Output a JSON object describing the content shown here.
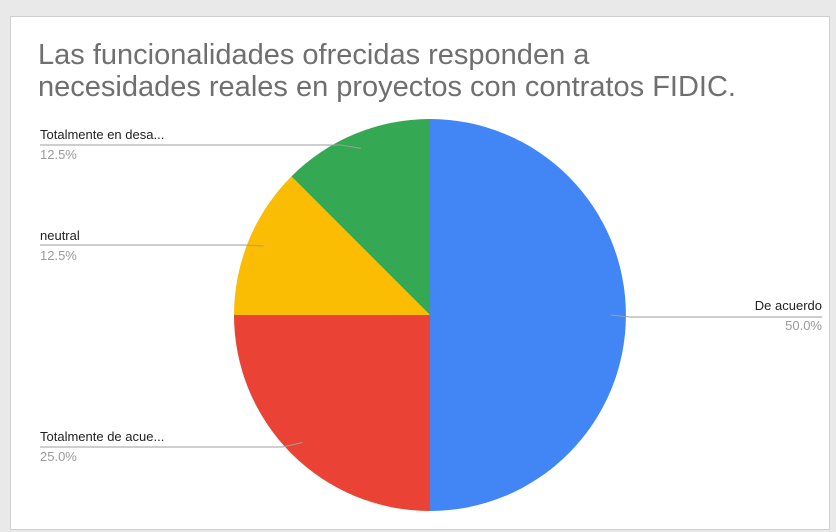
{
  "chart_data": {
    "type": "pie",
    "title": "Las funcionalidades ofrecidas responden a necesidades reales en proyectos con contratos FIDIC.",
    "title_lines": [
      "Las funcionalidades ofrecidas responden a",
      "necesidades reales en proyectos con contratos FIDIC."
    ],
    "slices": [
      {
        "label": "De acuerdo",
        "value": 50.0,
        "pct_label": "50.0%",
        "color": "#4285f4"
      },
      {
        "label": "Totalmente de acue...",
        "value": 25.0,
        "pct_label": "25.0%",
        "color": "#ea4335"
      },
      {
        "label": "neutral",
        "value": 12.5,
        "pct_label": "12.5%",
        "color": "#fbbc04"
      },
      {
        "label": "Totalmente en desa...",
        "value": 12.5,
        "pct_label": "12.5%",
        "color": "#34a853"
      }
    ],
    "legend": "none"
  }
}
